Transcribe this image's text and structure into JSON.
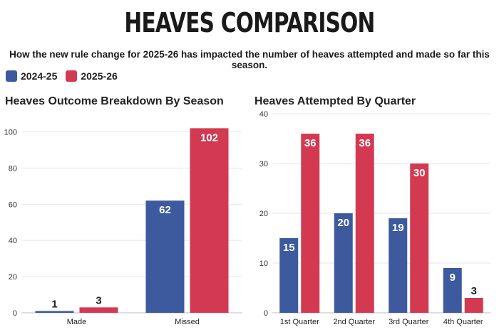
{
  "header": {
    "title": "HEAVES COMPARISON",
    "subtitle": "How the new rule change for 2025-26 has impacted the number of heaves attempted and made so far this season."
  },
  "legend": [
    {
      "label": "2024-25",
      "color": "#3d5a9e"
    },
    {
      "label": "2025-26",
      "color": "#d33a52"
    }
  ],
  "chart_data": [
    {
      "type": "bar",
      "title": "Heaves Outcome Breakdown By Season",
      "categories": [
        "Made",
        "Missed"
      ],
      "series": [
        {
          "name": "2024-25",
          "values": [
            1,
            62
          ],
          "color": "#3d5a9e"
        },
        {
          "name": "2025-26",
          "values": [
            3,
            102
          ],
          "color": "#d33a52"
        }
      ],
      "yticks": [
        0,
        20,
        40,
        60,
        80,
        100
      ],
      "ylim": [
        0,
        110
      ],
      "xlabel": "",
      "ylabel": ""
    },
    {
      "type": "bar",
      "title": "Heaves Attempted By Quarter",
      "categories": [
        "1st Quarter",
        "2nd Quarter",
        "3rd Quarter",
        "4th Quarter"
      ],
      "series": [
        {
          "name": "2024-25",
          "values": [
            15,
            20,
            19,
            9
          ],
          "color": "#3d5a9e"
        },
        {
          "name": "2025-26",
          "values": [
            36,
            36,
            30,
            3
          ],
          "color": "#d33a52"
        }
      ],
      "yticks": [
        0,
        10,
        20,
        30,
        40
      ],
      "ylim": [
        0,
        40
      ],
      "xlabel": "",
      "ylabel": ""
    }
  ]
}
